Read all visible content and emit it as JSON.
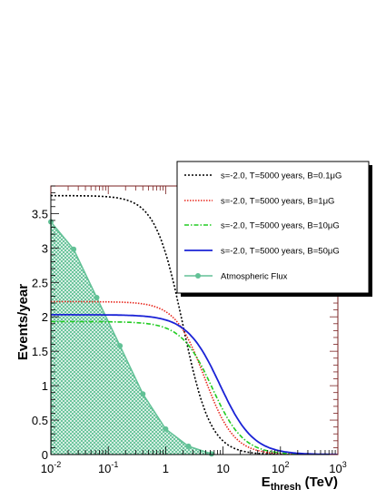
{
  "chart_data": {
    "type": "line",
    "xlabel": "E",
    "xlabel_sub": "thresh",
    "xlabel_unit": " (TeV)",
    "ylabel": "Events/year",
    "xscale": "log",
    "xlim": [
      0.01,
      1000
    ],
    "ylim": [
      0,
      3.9
    ],
    "grid": false,
    "legend_position": "top-right",
    "x_ticks": [
      0.01,
      0.1,
      1,
      10,
      100,
      1000
    ],
    "x_tick_labels": [
      {
        "base": "10",
        "exp": "-2"
      },
      {
        "base": "10",
        "exp": "-1"
      },
      {
        "base": "1",
        "exp": ""
      },
      {
        "base": "10",
        "exp": ""
      },
      {
        "base": "10",
        "exp": "2"
      },
      {
        "base": "10",
        "exp": "3"
      }
    ],
    "y_ticks": [
      0,
      0.5,
      1,
      1.5,
      2,
      2.5,
      3,
      3.5
    ],
    "y_tick_labels": [
      "0",
      "0.5",
      "1",
      "1.5",
      "2",
      "2.5",
      "3",
      "3.5"
    ],
    "series": [
      {
        "name": "s=-2.0, T=5000 years, B=0.1μG",
        "color": "#000000",
        "style": "dotted",
        "plateau": 3.76,
        "e_half": 2.0,
        "slope": 1.8
      },
      {
        "name": "s=-2.0, T=5000 years, B=1μG",
        "color": "#e8281e",
        "style": "dotted-fine",
        "plateau": 2.22,
        "e_half": 4.8,
        "slope": 1.7
      },
      {
        "name": "s=-2.0, T=5000 years, B=10μG",
        "color": "#22cc22",
        "style": "dashdot",
        "plateau": 1.93,
        "e_half": 6.5,
        "slope": 1.6
      },
      {
        "name": "s=-2.0, T=5000 years, B=50μG",
        "color": "#1a22d6",
        "style": "solid",
        "plateau": 2.03,
        "e_half": 8.8,
        "slope": 1.5
      },
      {
        "name": "Atmospheric Flux",
        "color": "#62c196",
        "style": "filled-markers",
        "x": [
          0.01,
          0.025,
          0.063,
          0.16,
          0.4,
          1.0,
          2.5,
          6.3
        ],
        "y": [
          3.38,
          2.98,
          2.28,
          1.58,
          0.88,
          0.37,
          0.12,
          0.01
        ]
      }
    ]
  }
}
